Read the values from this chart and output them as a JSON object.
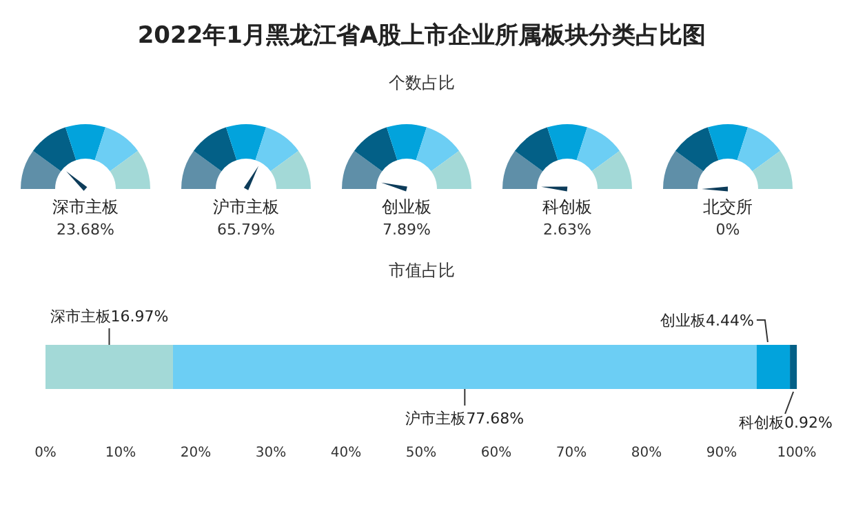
{
  "chart_data": [
    {
      "type": "other",
      "title": "2022年1月黑龙江省A股上市企业所属板块分类占比图",
      "subtitle": "个数占比",
      "categories": [
        "深市主板",
        "沪市主板",
        "创业板",
        "科创板",
        "北交所"
      ],
      "values": [
        23.68,
        65.79,
        7.89,
        2.63,
        0
      ],
      "value_labels": [
        "23.68%",
        "65.79%",
        "7.89%",
        "2.63%",
        "0%"
      ],
      "colors": [
        "#5f8fa8",
        "#036087",
        "#02a3dc",
        "#6ccef4",
        "#a3d9d7"
      ]
    },
    {
      "type": "bar",
      "orientation": "horizontal",
      "stacked": true,
      "title": "市值占比",
      "categories": [
        null
      ],
      "series": [
        {
          "color": "#a3d9d7",
          "values": [
            16.97
          ],
          "value_labels": [
            "深市主板16.97%"
          ]
        },
        {
          "color": "#6ccef4",
          "values": [
            77.68
          ],
          "value_labels": [
            "沪市主板77.68%"
          ]
        },
        {
          "color": "#02a3dc",
          "values": [
            4.44
          ],
          "value_labels": [
            "创业板4.44%"
          ]
        },
        {
          "color": "#036087",
          "values": [
            0.92
          ],
          "value_labels": [
            "科创板0.92%"
          ]
        }
      ],
      "xlim": [
        0,
        100
      ],
      "xticks": [
        {
          "value": 0,
          "label": "0%"
        },
        {
          "value": 10,
          "label": "10%"
        },
        {
          "value": 20,
          "label": "20%"
        },
        {
          "value": 30,
          "label": "30%"
        },
        {
          "value": 40,
          "label": "40%"
        },
        {
          "value": 50,
          "label": "50%"
        },
        {
          "value": 60,
          "label": "60%"
        },
        {
          "value": 70,
          "label": "70%"
        },
        {
          "value": 80,
          "label": "80%"
        },
        {
          "value": 90,
          "label": "90%"
        },
        {
          "value": 100,
          "label": "100%"
        }
      ],
      "grid": false
    }
  ]
}
